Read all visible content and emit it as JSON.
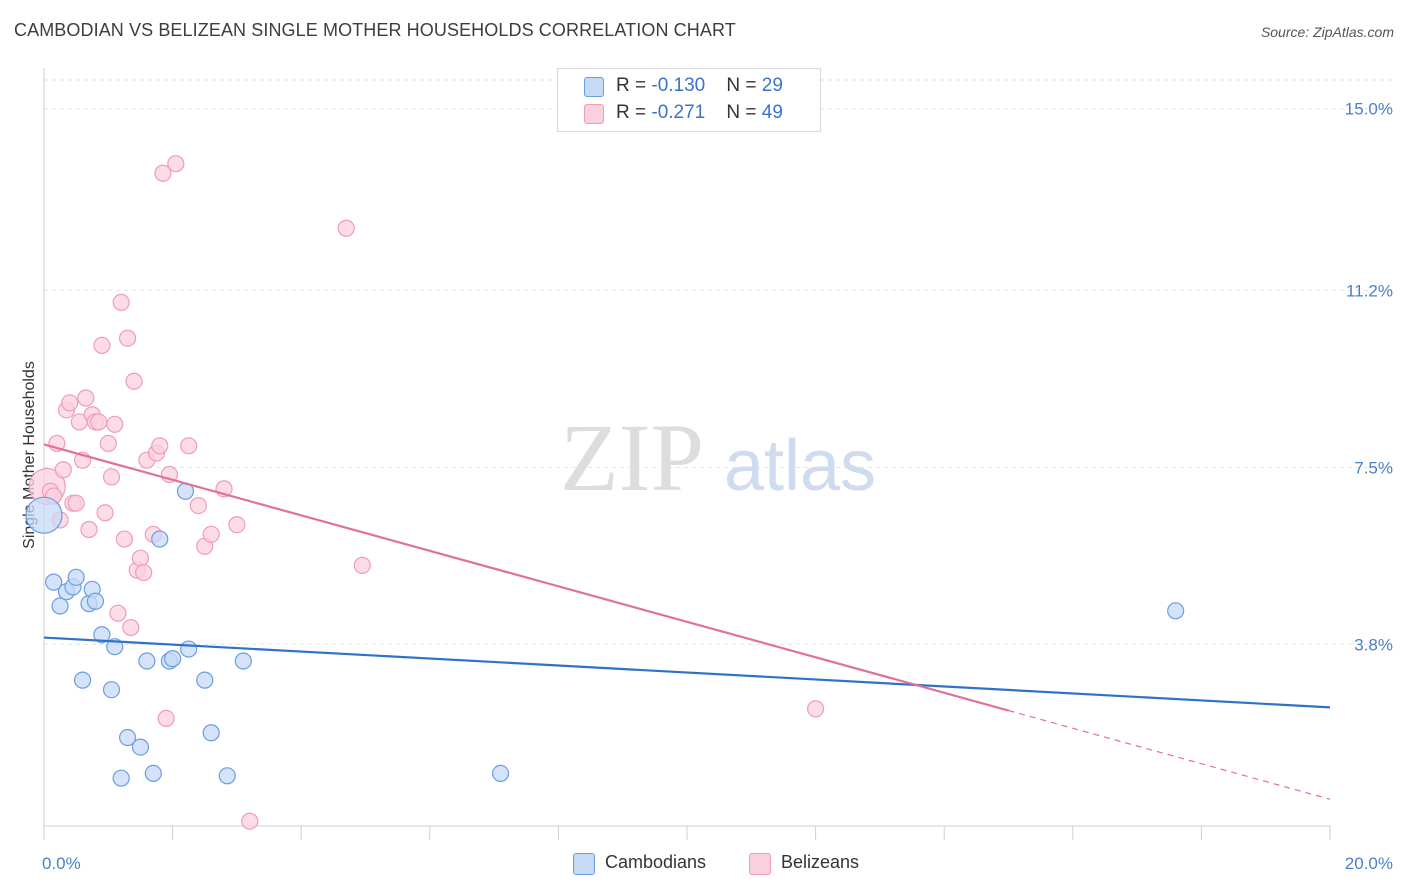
{
  "header": {
    "title": "CAMBODIAN VS BELIZEAN SINGLE MOTHER HOUSEHOLDS CORRELATION CHART",
    "source": "Source: ZipAtlas.com"
  },
  "watermark": {
    "zip": "ZIP",
    "atlas": "atlas"
  },
  "legend": {
    "cambodians": {
      "r_label": "R = ",
      "r_value": "-0.130",
      "n_label": "N = ",
      "n_value": "29"
    },
    "belizeans": {
      "r_label": "R = ",
      "r_value": "-0.271",
      "n_label": "N = ",
      "n_value": "49"
    }
  },
  "chart_data": {
    "type": "scatter",
    "title": "CAMBODIAN VS BELIZEAN SINGLE MOTHER HOUSEHOLDS CORRELATION CHART",
    "xlabel": "",
    "ylabel": "Single Mother Households",
    "xlim": [
      0,
      20
    ],
    "ylim": [
      0,
      15.6
    ],
    "x_tick_labels": [
      "0.0%",
      "20.0%"
    ],
    "y_ticks": [
      3.8,
      7.5,
      11.2,
      15.0
    ],
    "y_tick_labels": [
      "3.8%",
      "7.5%",
      "11.2%",
      "15.0%"
    ],
    "grid": true,
    "legend_position": "top-center",
    "colors": {
      "cambodians": "#6a9ee0",
      "belizeans": "#f29bb6",
      "cambodians_line": "#2f72c9",
      "belizeans_line": "#e0719a"
    },
    "series": [
      {
        "name": "Cambodians",
        "points": [
          [
            0.0,
            6.5
          ],
          [
            0.15,
            5.1
          ],
          [
            0.25,
            4.6
          ],
          [
            0.35,
            4.9
          ],
          [
            0.45,
            5.0
          ],
          [
            0.5,
            5.2
          ],
          [
            0.6,
            3.05
          ],
          [
            0.7,
            4.65
          ],
          [
            0.75,
            4.95
          ],
          [
            0.8,
            4.7
          ],
          [
            0.9,
            4.0
          ],
          [
            1.05,
            2.85
          ],
          [
            1.1,
            3.75
          ],
          [
            1.3,
            1.85
          ],
          [
            1.2,
            1.0
          ],
          [
            1.5,
            1.65
          ],
          [
            1.6,
            3.45
          ],
          [
            1.7,
            1.1
          ],
          [
            1.8,
            6.0
          ],
          [
            1.95,
            3.45
          ],
          [
            2.0,
            3.5
          ],
          [
            2.2,
            7.0
          ],
          [
            2.5,
            3.05
          ],
          [
            2.6,
            1.95
          ],
          [
            2.85,
            1.05
          ],
          [
            3.1,
            3.45
          ],
          [
            7.1,
            1.1
          ],
          [
            17.6,
            4.5
          ],
          [
            2.25,
            3.7
          ]
        ]
      },
      {
        "name": "Belizeans",
        "points": [
          [
            0.05,
            7.1
          ],
          [
            0.1,
            7.0
          ],
          [
            0.2,
            8.0
          ],
          [
            0.25,
            6.4
          ],
          [
            0.3,
            7.45
          ],
          [
            0.35,
            8.7
          ],
          [
            0.4,
            8.85
          ],
          [
            0.45,
            6.75
          ],
          [
            0.5,
            6.75
          ],
          [
            0.55,
            8.45
          ],
          [
            0.6,
            7.65
          ],
          [
            0.65,
            8.95
          ],
          [
            0.7,
            6.2
          ],
          [
            0.75,
            8.6
          ],
          [
            0.8,
            8.45
          ],
          [
            0.85,
            8.45
          ],
          [
            0.9,
            10.05
          ],
          [
            0.95,
            6.55
          ],
          [
            1.0,
            8.0
          ],
          [
            1.05,
            7.3
          ],
          [
            1.1,
            8.4
          ],
          [
            1.15,
            4.45
          ],
          [
            1.2,
            10.95
          ],
          [
            1.25,
            6.0
          ],
          [
            1.3,
            10.2
          ],
          [
            1.35,
            4.15
          ],
          [
            1.4,
            9.3
          ],
          [
            1.45,
            5.35
          ],
          [
            1.5,
            5.6
          ],
          [
            1.55,
            5.3
          ],
          [
            1.6,
            7.65
          ],
          [
            1.7,
            6.1
          ],
          [
            1.75,
            7.8
          ],
          [
            1.8,
            7.95
          ],
          [
            1.85,
            13.65
          ],
          [
            1.9,
            2.25
          ],
          [
            1.95,
            7.35
          ],
          [
            2.05,
            13.85
          ],
          [
            2.25,
            7.95
          ],
          [
            2.4,
            6.7
          ],
          [
            2.5,
            5.85
          ],
          [
            2.6,
            6.1
          ],
          [
            2.8,
            7.05
          ],
          [
            3.0,
            6.3
          ],
          [
            3.2,
            0.1
          ],
          [
            4.7,
            12.5
          ],
          [
            4.95,
            5.45
          ],
          [
            12.0,
            2.45
          ],
          [
            0.15,
            6.9
          ]
        ]
      }
    ],
    "trend_lines": [
      {
        "name": "Cambodians",
        "x": [
          0,
          20
        ],
        "y": [
          3.94,
          2.48
        ],
        "dashed_from_x": null
      },
      {
        "name": "Belizeans",
        "x": [
          0,
          20
        ],
        "y": [
          7.98,
          0.56
        ],
        "dashed_from_x": 15.0
      }
    ]
  }
}
